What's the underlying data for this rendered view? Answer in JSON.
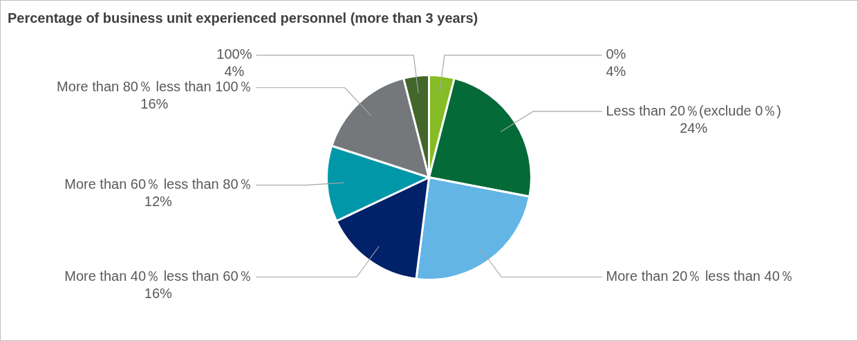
{
  "chart_data": {
    "type": "pie",
    "title": "Percentage of business unit experienced personnel (more than 3 years)",
    "categories": [
      "0%",
      "Less than 20％(exclude 0％)",
      "More than 20％ less than 40％",
      "More than 40％ less than 60％",
      "More than 60％ less than 80％",
      "More than 80％ less than 100％",
      "100%"
    ],
    "values": [
      4,
      24,
      24,
      16,
      12,
      16,
      4
    ],
    "value_labels": [
      "4%",
      "24%",
      null,
      "16%",
      "12%",
      "16%",
      "4%"
    ],
    "colors": [
      "#86bc25",
      "#046a38",
      "#62b5e5",
      "#012169",
      "#0097a9",
      "#75787b",
      "#43662a"
    ],
    "legend": false
  }
}
